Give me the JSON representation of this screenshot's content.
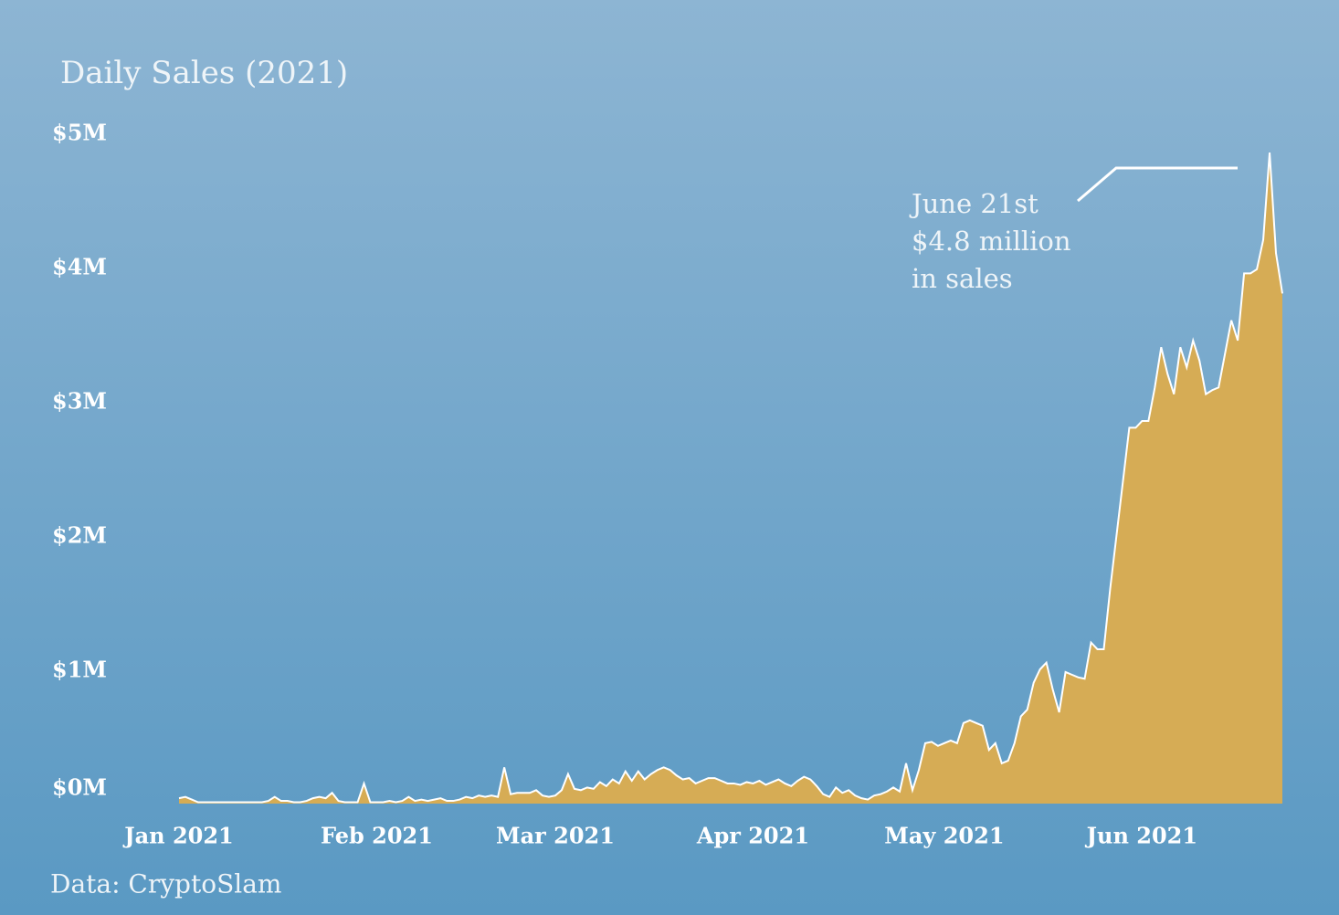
{
  "chart_data": {
    "type": "area",
    "title": "Daily Sales (2021)",
    "source": "Data: CryptoSlam",
    "annotation": [
      "June 21st",
      "$4.8 million",
      "in sales"
    ],
    "color": "#d6ac55",
    "xlim": [
      1,
      174
    ],
    "xticks": [
      {
        "value": 1,
        "label": "Jan 2021"
      },
      {
        "value": 32,
        "label": "Feb 2021"
      },
      {
        "value": 60,
        "label": "Mar 2021"
      },
      {
        "value": 91,
        "label": "Apr 2021"
      },
      {
        "value": 121,
        "label": "May 2021"
      },
      {
        "value": 152,
        "label": "Jun 2021"
      }
    ],
    "ylim": [
      0,
      5
    ],
    "yticks": [
      {
        "value": 0,
        "label": "$0M"
      },
      {
        "value": 1,
        "label": "$1M"
      },
      {
        "value": 2,
        "label": "$2M"
      },
      {
        "value": 3,
        "label": "$3M"
      },
      {
        "value": 4,
        "label": "$4M"
      },
      {
        "value": 5,
        "label": "$5M"
      }
    ],
    "x": [
      1,
      2,
      3,
      4,
      5,
      6,
      7,
      8,
      9,
      10,
      11,
      12,
      13,
      14,
      15,
      16,
      17,
      18,
      19,
      20,
      21,
      22,
      23,
      24,
      25,
      26,
      27,
      28,
      29,
      30,
      31,
      32,
      33,
      34,
      35,
      36,
      37,
      38,
      39,
      40,
      41,
      42,
      43,
      44,
      45,
      46,
      47,
      48,
      49,
      50,
      51,
      52,
      53,
      54,
      55,
      56,
      57,
      58,
      59,
      60,
      61,
      62,
      63,
      64,
      65,
      66,
      67,
      68,
      69,
      70,
      71,
      72,
      73,
      74,
      75,
      76,
      77,
      78,
      79,
      80,
      81,
      82,
      83,
      84,
      85,
      86,
      87,
      88,
      89,
      90,
      91,
      92,
      93,
      94,
      95,
      96,
      97,
      98,
      99,
      100,
      101,
      102,
      103,
      104,
      105,
      106,
      107,
      108,
      109,
      110,
      111,
      112,
      113,
      114,
      115,
      116,
      117,
      118,
      119,
      120,
      121,
      122,
      123,
      124,
      125,
      126,
      127,
      128,
      129,
      130,
      131,
      132,
      133,
      134,
      135,
      136,
      137,
      138,
      139,
      140,
      141,
      142,
      143,
      144,
      145,
      146,
      147,
      148,
      149,
      150,
      151,
      152,
      153,
      154,
      155,
      156,
      157,
      158,
      159,
      160,
      161,
      162,
      163,
      164,
      165,
      166,
      167,
      168,
      169,
      170,
      171,
      172,
      173,
      174
    ],
    "values": [
      0.04,
      0.05,
      0.03,
      0.01,
      0.01,
      0.01,
      0.01,
      0.01,
      0.01,
      0.01,
      0.01,
      0.01,
      0.01,
      0.01,
      0.02,
      0.05,
      0.02,
      0.02,
      0.01,
      0.01,
      0.02,
      0.04,
      0.05,
      0.04,
      0.08,
      0.02,
      0.01,
      0.01,
      0.01,
      0.15,
      0.01,
      0.01,
      0.01,
      0.02,
      0.01,
      0.02,
      0.05,
      0.02,
      0.03,
      0.02,
      0.03,
      0.04,
      0.02,
      0.02,
      0.03,
      0.05,
      0.04,
      0.06,
      0.05,
      0.06,
      0.05,
      0.27,
      0.07,
      0.08,
      0.08,
      0.08,
      0.1,
      0.06,
      0.05,
      0.06,
      0.1,
      0.22,
      0.11,
      0.1,
      0.12,
      0.11,
      0.16,
      0.13,
      0.18,
      0.15,
      0.24,
      0.17,
      0.24,
      0.18,
      0.22,
      0.25,
      0.27,
      0.25,
      0.21,
      0.18,
      0.19,
      0.15,
      0.17,
      0.19,
      0.19,
      0.17,
      0.15,
      0.15,
      0.14,
      0.16,
      0.15,
      0.17,
      0.14,
      0.16,
      0.18,
      0.15,
      0.13,
      0.17,
      0.2,
      0.18,
      0.13,
      0.07,
      0.05,
      0.12,
      0.08,
      0.1,
      0.06,
      0.04,
      0.03,
      0.06,
      0.07,
      0.09,
      0.12,
      0.09,
      0.3,
      0.1,
      0.25,
      0.45,
      0.46,
      0.43,
      0.45,
      0.47,
      0.45,
      0.6,
      0.62,
      0.6,
      0.58,
      0.4,
      0.45,
      0.3,
      0.32,
      0.45,
      0.65,
      0.7,
      0.9,
      1.0,
      1.05,
      0.85,
      0.68,
      0.98,
      0.96,
      0.94,
      0.93,
      1.2,
      1.15,
      1.15,
      1.6,
      2.0,
      2.4,
      2.8,
      2.8,
      2.85,
      2.85,
      3.1,
      3.4,
      3.2,
      3.05,
      3.4,
      3.25,
      3.45,
      3.3,
      3.05,
      3.08,
      3.1,
      3.35,
      3.6,
      3.45,
      3.95,
      3.95,
      3.98,
      4.2,
      4.85,
      4.1,
      3.8
    ]
  }
}
